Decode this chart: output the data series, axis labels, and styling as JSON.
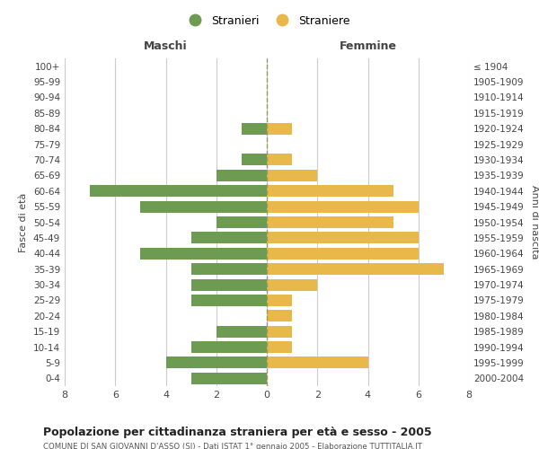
{
  "age_groups": [
    "100+",
    "95-99",
    "90-94",
    "85-89",
    "80-84",
    "75-79",
    "70-74",
    "65-69",
    "60-64",
    "55-59",
    "50-54",
    "45-49",
    "40-44",
    "35-39",
    "30-34",
    "25-29",
    "20-24",
    "15-19",
    "10-14",
    "5-9",
    "0-4"
  ],
  "birth_years": [
    "≤ 1904",
    "1905-1909",
    "1910-1914",
    "1915-1919",
    "1920-1924",
    "1925-1929",
    "1930-1934",
    "1935-1939",
    "1940-1944",
    "1945-1949",
    "1950-1954",
    "1955-1959",
    "1960-1964",
    "1965-1969",
    "1970-1974",
    "1975-1979",
    "1980-1984",
    "1985-1989",
    "1990-1994",
    "1995-1999",
    "2000-2004"
  ],
  "maschi": [
    0,
    0,
    0,
    0,
    1,
    0,
    1,
    2,
    7,
    5,
    2,
    3,
    5,
    3,
    3,
    3,
    0,
    2,
    3,
    4,
    3
  ],
  "femmine": [
    0,
    0,
    0,
    0,
    1,
    0,
    1,
    2,
    5,
    6,
    5,
    6,
    6,
    7,
    2,
    1,
    1,
    1,
    1,
    4,
    0
  ],
  "male_color": "#6d9b52",
  "female_color": "#e8b84b",
  "grid_color": "#cccccc",
  "center_line_color": "#999966",
  "title": "Popolazione per cittadinanza straniera per età e sesso - 2005",
  "subtitle": "COMUNE DI SAN GIOVANNI D'ASSO (SI) - Dati ISTAT 1° gennaio 2005 - Elaborazione TUTTITALIA.IT",
  "xlabel_left": "Maschi",
  "xlabel_right": "Femmine",
  "ylabel_left": "Fasce di età",
  "ylabel_right": "Anni di nascita",
  "legend_male": "Stranieri",
  "legend_female": "Straniere",
  "xlim": 8,
  "background_color": "#ffffff"
}
